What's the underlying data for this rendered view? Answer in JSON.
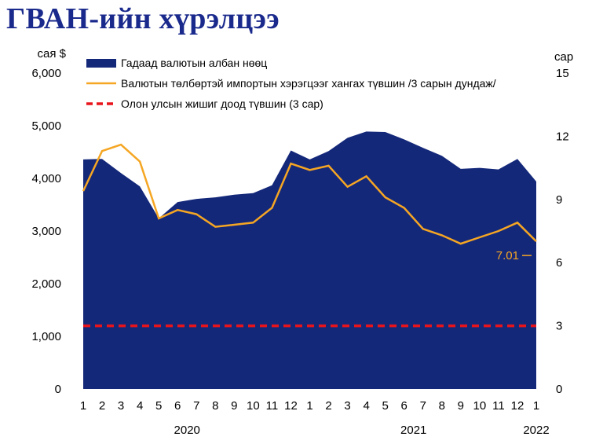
{
  "title": "ГВАН-ийн хүрэлцээ",
  "chart_data": {
    "type": "area",
    "title": "ГВАН-ийн хүрэлцээ",
    "left_axis": {
      "label": "сая $",
      "ylim": [
        0,
        6000
      ],
      "ticks": [
        0,
        1000,
        2000,
        3000,
        4000,
        5000,
        6000
      ],
      "tick_labels": [
        "0",
        "1,000",
        "2,000",
        "3,000",
        "4,000",
        "5,000",
        "6,000"
      ]
    },
    "right_axis": {
      "label": "сар",
      "ylim": [
        0,
        15
      ],
      "ticks": [
        0,
        3,
        6,
        9,
        12,
        15
      ],
      "tick_labels": [
        "0",
        "3",
        "6",
        "9",
        "12",
        "15"
      ]
    },
    "x": [
      "1",
      "2",
      "3",
      "4",
      "5",
      "6",
      "7",
      "8",
      "9",
      "10",
      "11",
      "12",
      "1",
      "2",
      "3",
      "4",
      "5",
      "6",
      "7",
      "8",
      "9",
      "10",
      "11",
      "12",
      "1"
    ],
    "year_labels": [
      {
        "label": "2020",
        "at_index": 5.5
      },
      {
        "label": "2021",
        "at_index": 17.5
      },
      {
        "label": "2022",
        "at_index": 24
      }
    ],
    "series": [
      {
        "name": "Гадаад валютын албан нөөц",
        "kind": "area",
        "axis": "left",
        "color": "#14287a",
        "values": [
          4360,
          4370,
          4100,
          3850,
          3240,
          3550,
          3610,
          3640,
          3690,
          3720,
          3870,
          4530,
          4360,
          4520,
          4770,
          4890,
          4880,
          4740,
          4580,
          4430,
          4180,
          4200,
          4170,
          4370,
          3940
        ]
      },
      {
        "name": "Валютын төлбөртэй импортын хэрэгцээг хангах түвшин /3 сарын дундаж/",
        "kind": "line",
        "axis": "right",
        "color": "#f5a623",
        "values": [
          9.4,
          11.3,
          11.6,
          10.8,
          8.1,
          8.5,
          8.3,
          7.7,
          7.8,
          7.9,
          8.6,
          10.7,
          10.4,
          10.6,
          9.6,
          10.1,
          9.1,
          8.6,
          7.6,
          7.3,
          6.9,
          7.2,
          7.5,
          7.9,
          7.01
        ]
      },
      {
        "name": "Олон улсын жишиг доод түвшин (3 сар)",
        "kind": "dashed",
        "axis": "right",
        "color": "#e8141b",
        "values": [
          3,
          3,
          3,
          3,
          3,
          3,
          3,
          3,
          3,
          3,
          3,
          3,
          3,
          3,
          3,
          3,
          3,
          3,
          3,
          3,
          3,
          3,
          3,
          3,
          3
        ]
      }
    ],
    "annotations": [
      {
        "series": 1,
        "index": 24,
        "text": "7.01"
      }
    ],
    "legend_position": "top-left",
    "grid": false
  }
}
